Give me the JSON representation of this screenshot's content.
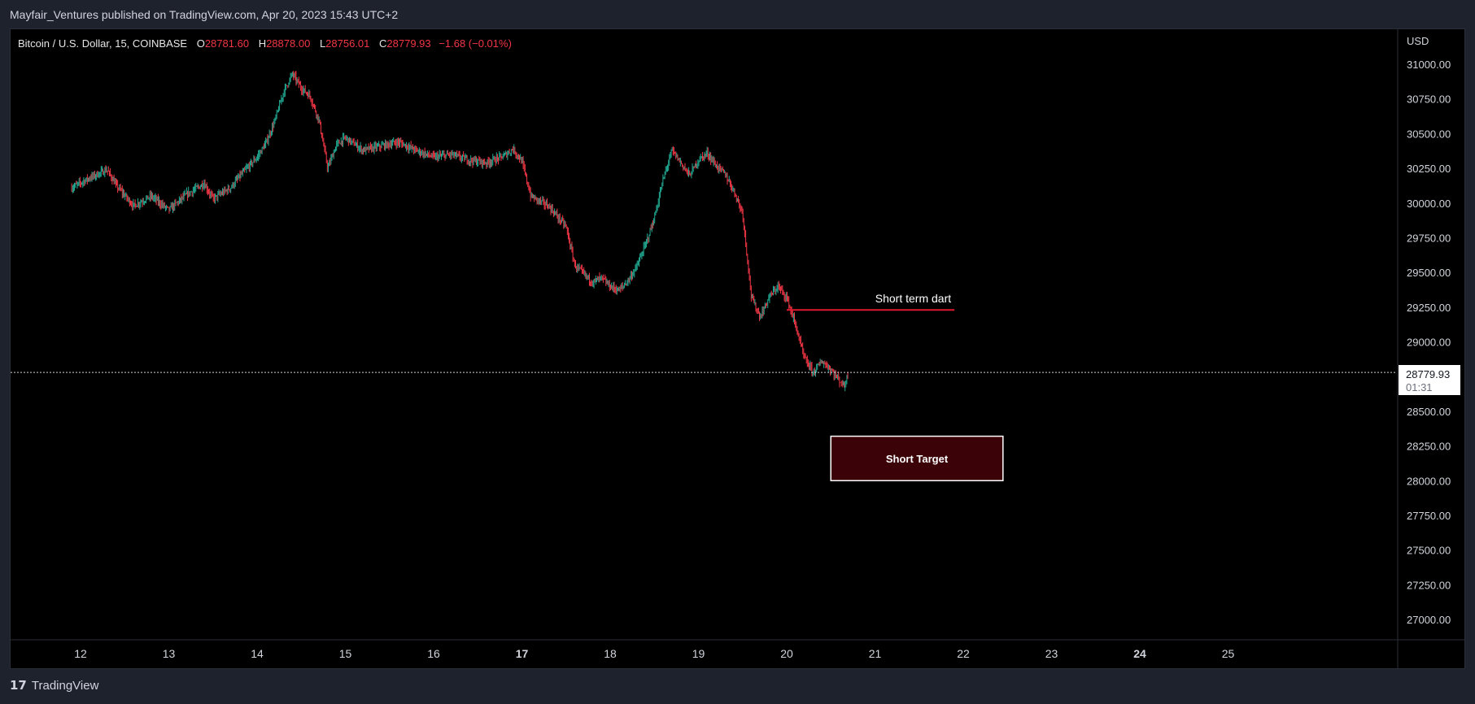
{
  "header": {
    "published": "Mayfair_Ventures published on TradingView.com, Apr 20, 2023 15:43 UTC+2"
  },
  "legend": {
    "symbol": "Bitcoin / U.S. Dollar, 15, COINBASE",
    "o_label": "O",
    "o_value": "28781.60",
    "h_label": "H",
    "h_value": "28878.00",
    "l_label": "L",
    "l_value": "28756.01",
    "c_label": "C",
    "c_value": "28779.93",
    "change": "−1.68 (−0.01%)"
  },
  "footer": {
    "brand": "TradingView",
    "logo_icon": "tradingview-logo-icon"
  },
  "colors": {
    "up": "#22ab94",
    "down": "#f23645",
    "background": "#000000",
    "frame": "#1e222d",
    "annotation_line": "#e0192f",
    "target_box_fill": "#3b0308"
  },
  "chart_data": {
    "type": "candlestick",
    "currency": "USD",
    "y_ticks": [
      "31000.00",
      "30750.00",
      "30500.00",
      "30250.00",
      "30000.00",
      "29750.00",
      "29500.00",
      "29250.00",
      "29000.00",
      "28750.00",
      "28500.00",
      "28250.00",
      "28000.00",
      "27750.00",
      "27500.00",
      "27250.00",
      "27000.00"
    ],
    "x_ticks": [
      {
        "label": "12",
        "bold": false
      },
      {
        "label": "13",
        "bold": false
      },
      {
        "label": "14",
        "bold": false
      },
      {
        "label": "15",
        "bold": false
      },
      {
        "label": "16",
        "bold": false
      },
      {
        "label": "17",
        "bold": true
      },
      {
        "label": "18",
        "bold": false
      },
      {
        "label": "19",
        "bold": false
      },
      {
        "label": "20",
        "bold": false
      },
      {
        "label": "21",
        "bold": false
      },
      {
        "label": "22",
        "bold": false
      },
      {
        "label": "23",
        "bold": false
      },
      {
        "label": "24",
        "bold": true
      },
      {
        "label": "25",
        "bold": false
      }
    ],
    "last_price": "28779.93",
    "countdown": "01:31",
    "price_path": [
      [
        11.9,
        30110
      ],
      [
        12.1,
        30180
      ],
      [
        12.3,
        30240
      ],
      [
        12.4,
        30130
      ],
      [
        12.6,
        29980
      ],
      [
        12.8,
        30050
      ],
      [
        12.9,
        30000
      ],
      [
        13.0,
        29950
      ],
      [
        13.2,
        30060
      ],
      [
        13.4,
        30140
      ],
      [
        13.5,
        30030
      ],
      [
        13.7,
        30110
      ],
      [
        13.8,
        30190
      ],
      [
        14.0,
        30330
      ],
      [
        14.1,
        30430
      ],
      [
        14.2,
        30590
      ],
      [
        14.3,
        30800
      ],
      [
        14.4,
        30930
      ],
      [
        14.5,
        30830
      ],
      [
        14.6,
        30770
      ],
      [
        14.7,
        30600
      ],
      [
        14.8,
        30250
      ],
      [
        14.9,
        30420
      ],
      [
        15.0,
        30470
      ],
      [
        15.2,
        30380
      ],
      [
        15.4,
        30410
      ],
      [
        15.6,
        30440
      ],
      [
        15.8,
        30380
      ],
      [
        16.0,
        30330
      ],
      [
        16.2,
        30350
      ],
      [
        16.4,
        30310
      ],
      [
        16.6,
        30290
      ],
      [
        16.8,
        30340
      ],
      [
        16.9,
        30390
      ],
      [
        17.0,
        30300
      ],
      [
        17.1,
        30050
      ],
      [
        17.3,
        29980
      ],
      [
        17.5,
        29830
      ],
      [
        17.6,
        29550
      ],
      [
        17.8,
        29430
      ],
      [
        17.9,
        29460
      ],
      [
        18.0,
        29400
      ],
      [
        18.1,
        29370
      ],
      [
        18.2,
        29440
      ],
      [
        18.3,
        29540
      ],
      [
        18.4,
        29700
      ],
      [
        18.5,
        29890
      ],
      [
        18.6,
        30170
      ],
      [
        18.7,
        30380
      ],
      [
        18.8,
        30290
      ],
      [
        18.9,
        30200
      ],
      [
        19.0,
        30310
      ],
      [
        19.1,
        30360
      ],
      [
        19.2,
        30270
      ],
      [
        19.3,
        30210
      ],
      [
        19.4,
        30090
      ],
      [
        19.5,
        29930
      ],
      [
        19.6,
        29320
      ],
      [
        19.7,
        29180
      ],
      [
        19.8,
        29320
      ],
      [
        19.9,
        29400
      ],
      [
        20.0,
        29320
      ],
      [
        20.1,
        29120
      ],
      [
        20.2,
        28880
      ],
      [
        20.3,
        28780
      ],
      [
        20.4,
        28860
      ],
      [
        20.5,
        28800
      ],
      [
        20.6,
        28720
      ],
      [
        20.65,
        28680
      ],
      [
        20.7,
        28780
      ]
    ],
    "annotations": [
      {
        "type": "horizontal_line",
        "label": "Short term dart",
        "price": 29230,
        "x_start": 20.0,
        "x_end": 21.9
      },
      {
        "type": "box",
        "label": "Short Target",
        "price_top": 28320,
        "price_bottom": 28000,
        "x_start": 20.5,
        "x_end": 22.45
      }
    ]
  }
}
